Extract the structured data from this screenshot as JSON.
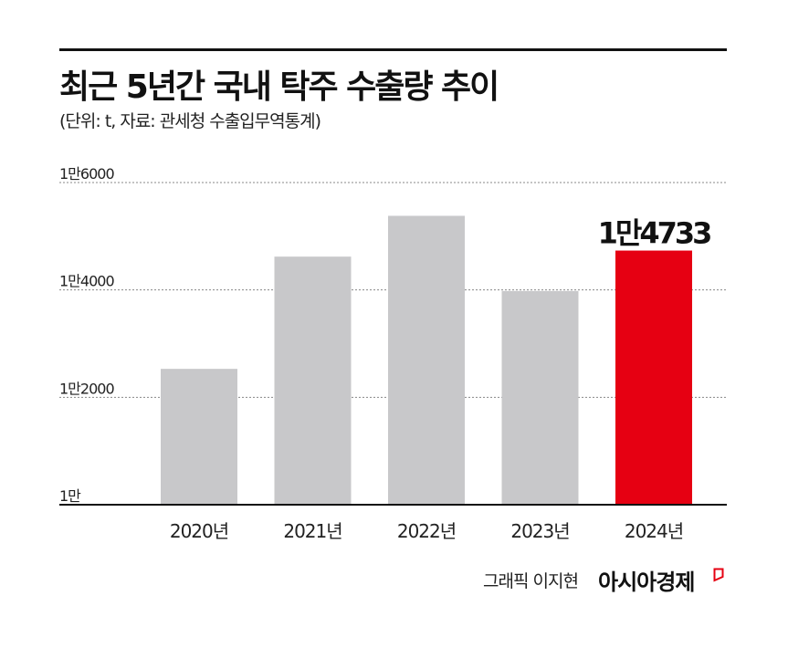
{
  "chart_data": {
    "type": "bar",
    "title": "최근 5년간 국내 탁주 수출량 추이",
    "subtitle": "(단위: t, 자료: 관세청 수출입무역통계)",
    "categories": [
      "2020년",
      "2021년",
      "2022년",
      "2023년",
      "2024년"
    ],
    "values": [
      12530,
      14620,
      15380,
      13980,
      14733
    ],
    "ylim": [
      10000,
      16000
    ],
    "yticks": [
      10000,
      12000,
      14000,
      16000
    ],
    "ytick_labels": [
      "1만",
      "1만2000",
      "1만4000",
      "1만6000"
    ],
    "grid": "horizontal dotted",
    "highlight_index": 4,
    "highlight_label": "1만4733",
    "colors": {
      "bar": "#c8c8ca",
      "highlight": "#e60012",
      "grid": "#888888",
      "axis": "#111111"
    }
  },
  "footer": {
    "credit": "그래픽 이지현",
    "logo": "아시아경제"
  }
}
